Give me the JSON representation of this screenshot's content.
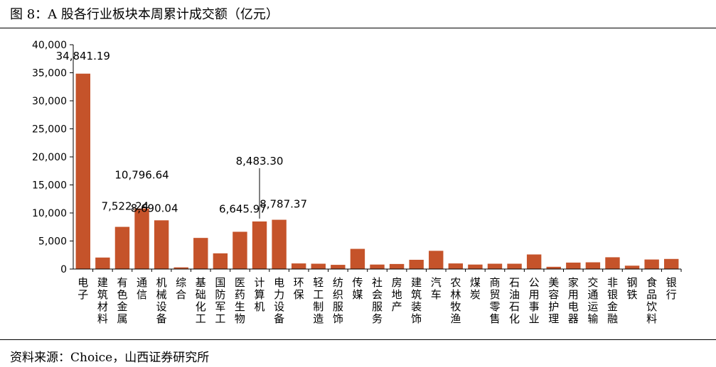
{
  "title": "图 8：A 股各行业板块本周累计成交额（亿元）",
  "source": "资料来源：Choice，山西证券研究所",
  "colors": {
    "bar": "#C5532A",
    "axis": "#000000"
  },
  "chart_data": {
    "type": "bar",
    "title": "",
    "xlabel": "",
    "ylabel": "",
    "ylim": [
      0,
      40000
    ],
    "yticks": [
      "0",
      "5,000",
      "10,000",
      "15,000",
      "20,000",
      "25,000",
      "30,000",
      "35,000",
      "40,000"
    ],
    "grid": false,
    "legend": "none",
    "categories": [
      "电子",
      "建筑材料",
      "有色金属",
      "通信",
      "机械设备",
      "综合",
      "基础化工",
      "国防军工",
      "医药生物",
      "计算机",
      "电力设备",
      "环保",
      "轻工制造",
      "纺织服饰",
      "传媒",
      "社会服务",
      "房地产",
      "建筑装饰",
      "汽车",
      "农林牧渔",
      "煤炭",
      "商贸零售",
      "石油石化",
      "公用事业",
      "美容护理",
      "家用电器",
      "交通运输",
      "非银金融",
      "钢铁",
      "食品饮料",
      "银行"
    ],
    "values": [
      34841.19,
      2050,
      7522.24,
      10796.64,
      8690.04,
      300,
      5550,
      2800,
      6645.97,
      8483.3,
      8787.37,
      1000,
      950,
      750,
      3600,
      800,
      900,
      1650,
      3250,
      1000,
      800,
      950,
      950,
      2600,
      400,
      1150,
      1200,
      2100,
      600,
      1700,
      1800
    ],
    "data_labels": [
      {
        "category": "电子",
        "text": "34,841.19"
      },
      {
        "category": "有色金属",
        "text": "7,522.24"
      },
      {
        "category": "通信",
        "text": "10,796.64"
      },
      {
        "category": "机械设备",
        "text": "8,690.04"
      },
      {
        "category": "医药生物",
        "text": "6,645.97"
      },
      {
        "category": "计算机",
        "text": "8,483.30"
      },
      {
        "category": "电力设备",
        "text": "8,787.37"
      }
    ]
  }
}
